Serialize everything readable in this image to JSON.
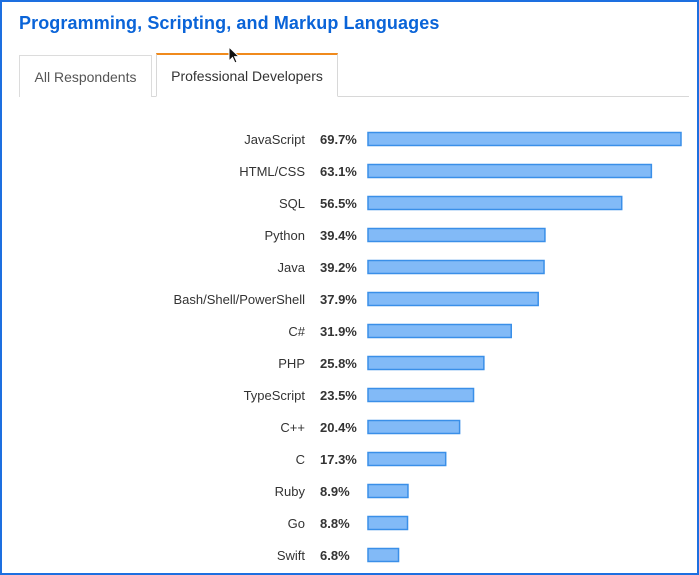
{
  "header": {
    "title": "Programming, Scripting, and Markup Languages"
  },
  "tabs": [
    {
      "label": "All Respondents",
      "active": false
    },
    {
      "label": "Professional Developers",
      "active": true
    }
  ],
  "colors": {
    "accent": "#0a64d8",
    "active_tab_border": "#f08a1c",
    "bar_fill": "#82baf7",
    "bar_stroke": "#3a8fe8"
  },
  "chart_data": {
    "type": "bar",
    "orientation": "horizontal",
    "categories": [
      "JavaScript",
      "HTML/CSS",
      "SQL",
      "Python",
      "Java",
      "Bash/Shell/PowerShell",
      "C#",
      "PHP",
      "TypeScript",
      "C++",
      "C",
      "Ruby",
      "Go",
      "Swift"
    ],
    "values": [
      69.7,
      63.1,
      56.5,
      39.4,
      39.2,
      37.9,
      31.9,
      25.8,
      23.5,
      20.4,
      17.3,
      8.9,
      8.8,
      6.8
    ],
    "value_labels": [
      "69.7%",
      "63.1%",
      "56.5%",
      "39.4%",
      "39.2%",
      "37.9%",
      "31.9%",
      "25.8%",
      "23.5%",
      "20.4%",
      "17.3%",
      "8.9%",
      "8.8%",
      "6.8%"
    ],
    "xlim": [
      0,
      69.7
    ],
    "grid": false
  }
}
